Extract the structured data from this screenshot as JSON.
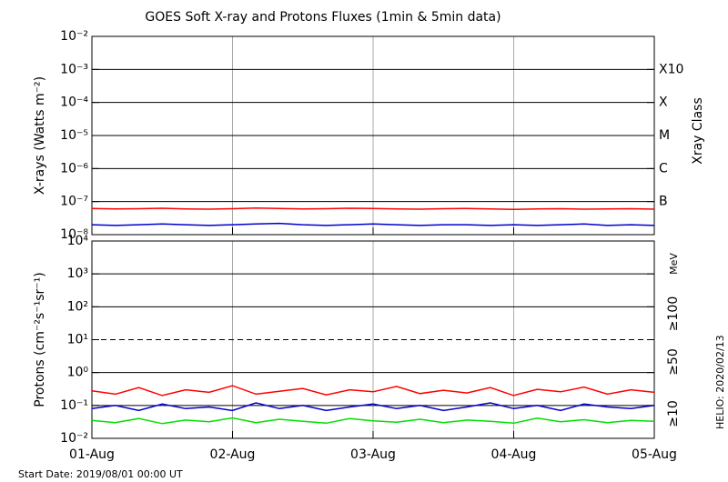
{
  "chart_data": [
    {
      "type": "line",
      "title": "GOES Soft X-ray and Protons Fluxes   (1min & 5min data)",
      "ylabel": "X-rays (Watts m⁻²)",
      "y2label": "Xray Class",
      "log": true,
      "ylim": [
        1e-08,
        0.01
      ],
      "yticks": [
        {
          "value": 1e-08,
          "label": "10⁻⁸"
        },
        {
          "value": 1e-07,
          "label": "10⁻⁷"
        },
        {
          "value": 1e-06,
          "label": "10⁻⁶"
        },
        {
          "value": 1e-05,
          "label": "10⁻⁵"
        },
        {
          "value": 0.0001,
          "label": "10⁻⁴"
        },
        {
          "value": 0.001,
          "label": "10⁻³"
        },
        {
          "value": 0.01,
          "label": "10⁻²"
        }
      ],
      "class_labels": [
        {
          "value": 0.001,
          "label": "X10"
        },
        {
          "value": 0.0001,
          "label": "X"
        },
        {
          "value": 1e-05,
          "label": "M"
        },
        {
          "value": 1e-06,
          "label": "C"
        },
        {
          "value": 1e-07,
          "label": "B"
        }
      ],
      "xlim": [
        0,
        96
      ],
      "xticks": [
        0,
        24,
        48,
        72,
        96
      ],
      "x": [
        0,
        4,
        8,
        12,
        16,
        20,
        24,
        28,
        32,
        36,
        40,
        44,
        48,
        52,
        56,
        60,
        64,
        68,
        72,
        76,
        80,
        84,
        88,
        92,
        96
      ],
      "series": [
        {
          "color": "#ff0000",
          "values": [
            6.2e-08,
            6e-08,
            6.1e-08,
            6.3e-08,
            6e-08,
            5.9e-08,
            6.1e-08,
            6.4e-08,
            6.2e-08,
            6e-08,
            6.1e-08,
            6.3e-08,
            6.2e-08,
            6e-08,
            5.9e-08,
            6.1e-08,
            6.2e-08,
            6e-08,
            5.8e-08,
            6e-08,
            6.1e-08,
            5.9e-08,
            6e-08,
            6.1e-08,
            5.9e-08
          ]
        },
        {
          "color": "#0000cc",
          "values": [
            2e-08,
            1.9e-08,
            2e-08,
            2.1e-08,
            2e-08,
            1.9e-08,
            2e-08,
            2.1e-08,
            2.2e-08,
            2e-08,
            1.9e-08,
            2e-08,
            2.1e-08,
            2e-08,
            1.9e-08,
            2e-08,
            2e-08,
            1.9e-08,
            2e-08,
            1.9e-08,
            2e-08,
            2.1e-08,
            1.9e-08,
            2e-08,
            1.9e-08
          ]
        }
      ]
    },
    {
      "type": "line",
      "ylabel": "Protons (cm⁻²s⁻¹sr⁻¹)",
      "legend_title": "MeV",
      "log": true,
      "ylim": [
        0.01,
        10000.0
      ],
      "dashed_line": 10,
      "yticks": [
        {
          "value": 0.01,
          "label": "10⁻²"
        },
        {
          "value": 0.1,
          "label": "10⁻¹"
        },
        {
          "value": 1,
          "label": "10⁰"
        },
        {
          "value": 10,
          "label": "10¹"
        },
        {
          "value": 100,
          "label": "10²"
        },
        {
          "value": 1000,
          "label": "10³"
        },
        {
          "value": 10000,
          "label": "10⁴"
        }
      ],
      "xlim": [
        0,
        96
      ],
      "xticks": [
        {
          "value": 0,
          "label": "01-Aug"
        },
        {
          "value": 24,
          "label": "02-Aug"
        },
        {
          "value": 48,
          "label": "03-Aug"
        },
        {
          "value": 72,
          "label": "04-Aug"
        },
        {
          "value": 96,
          "label": "05-Aug"
        }
      ],
      "x": [
        0,
        4,
        8,
        12,
        16,
        20,
        24,
        28,
        32,
        36,
        40,
        44,
        48,
        52,
        56,
        60,
        64,
        68,
        72,
        76,
        80,
        84,
        88,
        92,
        96
      ],
      "series": [
        {
          "name": "≥10",
          "color": "#ff0000",
          "values": [
            0.28,
            0.22,
            0.35,
            0.2,
            0.3,
            0.25,
            0.4,
            0.22,
            0.27,
            0.33,
            0.21,
            0.3,
            0.26,
            0.38,
            0.23,
            0.29,
            0.24,
            0.35,
            0.2,
            0.31,
            0.26,
            0.36,
            0.22,
            0.3,
            0.25
          ]
        },
        {
          "name": "≥50",
          "color": "#0000cc",
          "values": [
            0.08,
            0.1,
            0.07,
            0.11,
            0.08,
            0.09,
            0.07,
            0.12,
            0.08,
            0.1,
            0.07,
            0.09,
            0.11,
            0.08,
            0.1,
            0.07,
            0.09,
            0.12,
            0.08,
            0.1,
            0.07,
            0.11,
            0.09,
            0.08,
            0.1
          ]
        },
        {
          "name": "≥100",
          "color": "#00e000",
          "values": [
            0.035,
            0.03,
            0.04,
            0.028,
            0.036,
            0.032,
            0.042,
            0.03,
            0.038,
            0.033,
            0.029,
            0.04,
            0.034,
            0.031,
            0.038,
            0.03,
            0.036,
            0.033,
            0.029,
            0.041,
            0.032,
            0.037,
            0.03,
            0.035,
            0.033
          ]
        }
      ]
    }
  ],
  "footer": {
    "start": "Start Date: 2019/08/01 00:00 UT",
    "helio": "HELIO: 2020/02/13"
  }
}
